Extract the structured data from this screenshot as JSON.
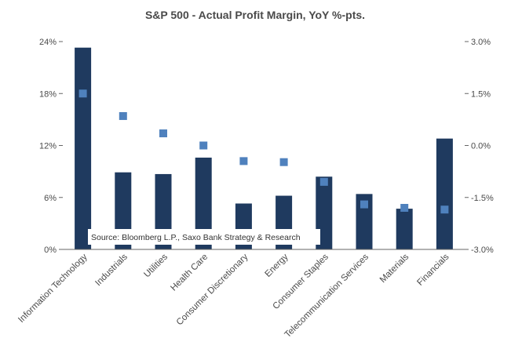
{
  "chart_data": {
    "type": "bar",
    "title": "S&P 500  - Actual Profit Margin, YoY %-pts.",
    "categories": [
      "Information Technology",
      "Industrials",
      "Utilities",
      "Health Care",
      "Consumer Discretionary",
      "Energy",
      "Consumer Staples",
      "Telecommunication Services",
      "Materials",
      "Financials"
    ],
    "series": [
      {
        "axis": "left",
        "type": "bar",
        "color": "#1f3a5f",
        "values": [
          23.3,
          8.9,
          8.7,
          10.6,
          5.3,
          6.2,
          8.4,
          6.4,
          4.7,
          12.8
        ]
      },
      {
        "axis": "right",
        "type": "scatter",
        "color": "#4f81bd",
        "values": [
          1.5,
          0.85,
          0.35,
          0.0,
          -0.45,
          -0.48,
          -1.05,
          -1.7,
          -1.8,
          -1.85
        ]
      }
    ],
    "y_left": {
      "min": 0,
      "max": 24,
      "ticks": [
        0,
        6,
        12,
        18,
        24
      ],
      "tick_labels": [
        "0%",
        "6%",
        "12%",
        "18%",
        "24%"
      ]
    },
    "y_right": {
      "min": -3,
      "max": 3,
      "ticks": [
        -3,
        -1.5,
        0,
        1.5,
        3
      ],
      "tick_labels": [
        "-3.0%",
        "-1.5%",
        "0.0%",
        "1.5%",
        "3.0%"
      ]
    },
    "grid": false,
    "annotation": "Source: Bloomberg L.P., Saxo Bank Strategy & Research"
  }
}
